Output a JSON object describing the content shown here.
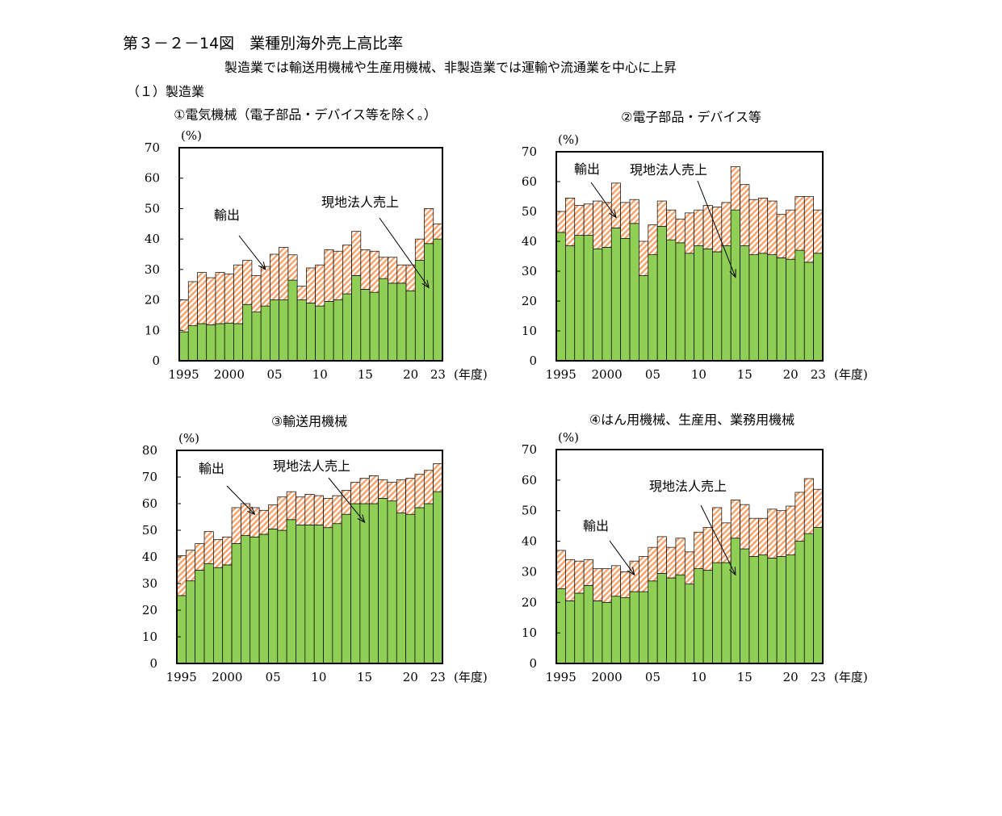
{
  "figure": {
    "title": "第３－２－14図　業種別海外売上高比率",
    "subtitle": "製造業では輸送用機械や生産用機械、非製造業では運輸や流通業を中心に上昇",
    "section": "（１）製造業"
  },
  "colors": {
    "export": "#f4a26a",
    "local_sales": "#8fcf55"
  },
  "chart_data": [
    {
      "type": "bar",
      "stacked": true,
      "title": "①電気機械（電子部品・デバイス等を除く。）",
      "ylabel": "(%)",
      "xlabel": "(年度)",
      "ylim": [
        0,
        70
      ],
      "yticks": [
        "0",
        "10",
        "20",
        "30",
        "40",
        "50",
        "60",
        "70"
      ],
      "xtick_labels": [
        "1995",
        "2000",
        "05",
        "10",
        "15",
        "20",
        "23"
      ],
      "xtick_years": [
        1995,
        2000,
        2005,
        2010,
        2015,
        2020,
        2023
      ],
      "x": [
        1995,
        1996,
        1997,
        1998,
        1999,
        2000,
        2001,
        2002,
        2003,
        2004,
        2005,
        2006,
        2007,
        2008,
        2009,
        2010,
        2011,
        2012,
        2013,
        2014,
        2015,
        2016,
        2017,
        2018,
        2019,
        2020,
        2021,
        2022,
        2023
      ],
      "series": [
        {
          "name": "現地法人売上",
          "values": [
            9.5,
            11.5,
            12.2,
            11.8,
            12.2,
            12.4,
            12.2,
            18.5,
            16,
            18,
            20,
            20,
            26.5,
            20,
            19,
            18,
            19.5,
            20,
            22,
            28,
            23.5,
            22.5,
            27,
            25.5,
            25.5,
            23,
            33,
            38.5,
            40
          ]
        },
        {
          "name": "輸出",
          "values": [
            10.5,
            14.5,
            16.8,
            15.5,
            16.8,
            16.1,
            19.3,
            14.5,
            12,
            13,
            15,
            17.3,
            8.3,
            4.5,
            11.5,
            13.5,
            17,
            16,
            16,
            14.5,
            13,
            13.5,
            7,
            8.5,
            6,
            8.5,
            7,
            11.5,
            5
          ]
        }
      ],
      "annotations": [
        {
          "text": "輸出",
          "target_x": 2004,
          "target_y": 30
        },
        {
          "text": "現地法人売上",
          "target_x": 2022,
          "target_y": 24
        }
      ]
    },
    {
      "type": "bar",
      "stacked": true,
      "title": "②電子部品・デバイス等",
      "ylabel": "(%)",
      "xlabel": "(年度)",
      "ylim": [
        0,
        70
      ],
      "yticks": [
        "0",
        "10",
        "20",
        "30",
        "40",
        "50",
        "60",
        "70"
      ],
      "xtick_labels": [
        "1995",
        "2000",
        "05",
        "10",
        "15",
        "20",
        "23"
      ],
      "xtick_years": [
        1995,
        2000,
        2005,
        2010,
        2015,
        2020,
        2023
      ],
      "x": [
        1995,
        1996,
        1997,
        1998,
        1999,
        2000,
        2001,
        2002,
        2003,
        2004,
        2005,
        2006,
        2007,
        2008,
        2009,
        2010,
        2011,
        2012,
        2013,
        2014,
        2015,
        2016,
        2017,
        2018,
        2019,
        2020,
        2021,
        2022,
        2023
      ],
      "series": [
        {
          "name": "現地法人売上",
          "values": [
            43,
            38.5,
            42,
            42,
            37.5,
            38,
            44.5,
            41,
            46,
            28.5,
            35.5,
            45,
            40.5,
            39.5,
            36,
            38.5,
            37.5,
            36.5,
            38.5,
            50.5,
            38.5,
            35.5,
            36,
            35.5,
            34.5,
            34,
            37,
            33,
            36
          ]
        },
        {
          "name": "輸出",
          "values": [
            7,
            16,
            10,
            10.5,
            16,
            15,
            15,
            12,
            8,
            11.5,
            10,
            8.5,
            10,
            8,
            13.5,
            12,
            14.5,
            15,
            14.5,
            14.5,
            20.5,
            18.5,
            18.5,
            18,
            14.5,
            16.5,
            18,
            22,
            14.5
          ]
        }
      ],
      "annotations": [
        {
          "text": "輸出",
          "target_x": 2001,
          "target_y": 48
        },
        {
          "text": "現地法人売上",
          "target_x": 2014,
          "target_y": 28
        }
      ]
    },
    {
      "type": "bar",
      "stacked": true,
      "title": "③輸送用機械",
      "ylabel": "(%)",
      "xlabel": "(年度)",
      "ylim": [
        0,
        80
      ],
      "yticks": [
        "0",
        "10",
        "20",
        "30",
        "40",
        "50",
        "60",
        "70",
        "80"
      ],
      "xtick_labels": [
        "1995",
        "2000",
        "05",
        "10",
        "15",
        "20",
        "23"
      ],
      "xtick_years": [
        1995,
        2000,
        2005,
        2010,
        2015,
        2020,
        2023
      ],
      "x": [
        1995,
        1996,
        1997,
        1998,
        1999,
        2000,
        2001,
        2002,
        2003,
        2004,
        2005,
        2006,
        2007,
        2008,
        2009,
        2010,
        2011,
        2012,
        2013,
        2014,
        2015,
        2016,
        2017,
        2018,
        2019,
        2020,
        2021,
        2022,
        2023
      ],
      "series": [
        {
          "name": "現地法人売上",
          "values": [
            25.5,
            31,
            35,
            37.5,
            36,
            37,
            45,
            48,
            47.5,
            48.5,
            50.5,
            50,
            54,
            52,
            52,
            52,
            51,
            52.5,
            56,
            60,
            60,
            60,
            62,
            61,
            56.5,
            56,
            58.5,
            60,
            64.5
          ]
        },
        {
          "name": "輸出",
          "values": [
            15,
            11.5,
            10,
            12,
            10.5,
            10.5,
            13.5,
            12,
            11,
            9,
            9,
            12.5,
            10.5,
            10.5,
            11.5,
            11,
            11,
            10.5,
            9,
            8,
            9.5,
            10.5,
            7,
            7,
            12.5,
            13.5,
            12.5,
            12.5,
            10.5
          ]
        }
      ],
      "annotations": [
        {
          "text": "輸出",
          "target_x": 2003,
          "target_y": 56
        },
        {
          "text": "現地法人売上",
          "target_x": 2015,
          "target_y": 53
        }
      ]
    },
    {
      "type": "bar",
      "stacked": true,
      "title": "④はん用機械、生産用、業務用機械",
      "ylabel": "(%)",
      "xlabel": "(年度)",
      "ylim": [
        0,
        70
      ],
      "yticks": [
        "0",
        "10",
        "20",
        "30",
        "40",
        "50",
        "60",
        "70"
      ],
      "xtick_labels": [
        "1995",
        "2000",
        "05",
        "10",
        "15",
        "20",
        "23"
      ],
      "xtick_years": [
        1995,
        2000,
        2005,
        2010,
        2015,
        2020,
        2023
      ],
      "x": [
        1995,
        1996,
        1997,
        1998,
        1999,
        2000,
        2001,
        2002,
        2003,
        2004,
        2005,
        2006,
        2007,
        2008,
        2009,
        2010,
        2011,
        2012,
        2013,
        2014,
        2015,
        2016,
        2017,
        2018,
        2019,
        2020,
        2021,
        2022,
        2023
      ],
      "series": [
        {
          "name": "現地法人売上",
          "values": [
            24.5,
            20.5,
            23,
            25.5,
            20.5,
            20,
            22,
            21.5,
            23.5,
            23.5,
            27,
            29.5,
            28,
            29,
            26,
            31,
            30.5,
            33,
            33,
            41,
            37.5,
            35,
            35.5,
            34.5,
            35,
            35.5,
            40,
            42.5,
            44.5
          ]
        },
        {
          "name": "輸出",
          "values": [
            12.5,
            13.5,
            10.5,
            8.5,
            10.5,
            11,
            10,
            8.5,
            10,
            11.5,
            11,
            12,
            10,
            12,
            10.5,
            12,
            14,
            18,
            13,
            12.5,
            14.5,
            12.5,
            12,
            16,
            15,
            16,
            16,
            18,
            12.5
          ]
        }
      ],
      "annotations": [
        {
          "text": "輸出",
          "target_x": 2003,
          "target_y": 29
        },
        {
          "text": "現地法人売上",
          "target_x": 2014,
          "target_y": 29
        }
      ]
    }
  ]
}
